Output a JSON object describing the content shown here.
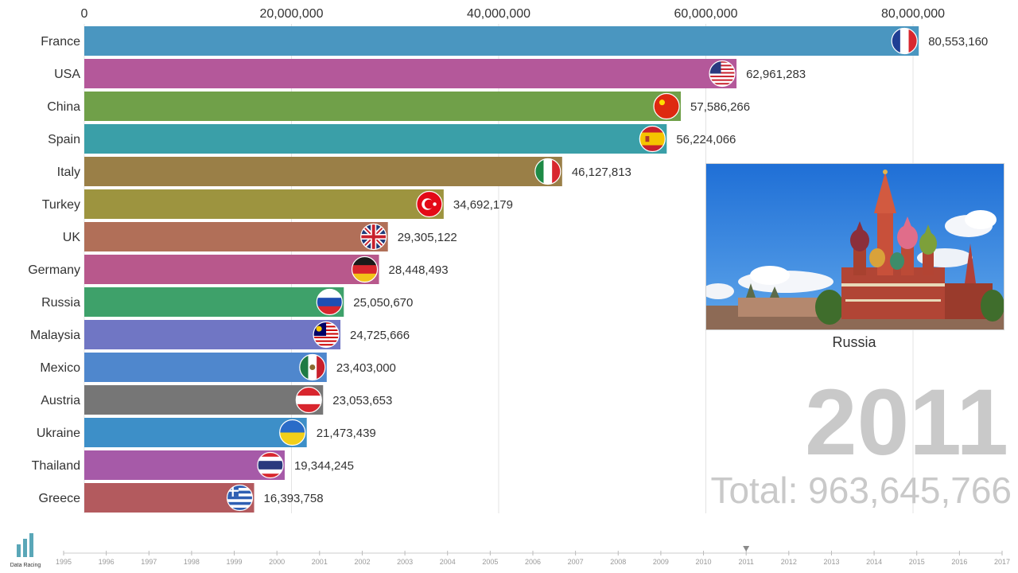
{
  "chart_data": {
    "type": "bar",
    "orientation": "horizontal",
    "title": "",
    "xlabel": "",
    "ylabel": "",
    "xlim": [
      0,
      88000000
    ],
    "x_ticks": [
      0,
      20000000,
      40000000,
      60000000,
      80000000
    ],
    "x_tick_labels": [
      "0",
      "20,000,000",
      "40,000,000",
      "60,000,000",
      "80,000,000"
    ],
    "grid": true,
    "categories": [
      "France",
      "USA",
      "China",
      "Spain",
      "Italy",
      "Turkey",
      "UK",
      "Germany",
      "Russia",
      "Malaysia",
      "Mexico",
      "Austria",
      "Ukraine",
      "Thailand",
      "Greece"
    ],
    "values": [
      80553160,
      62961283,
      57586266,
      56224066,
      46127813,
      34692179,
      29305122,
      28448493,
      25050670,
      24725666,
      23403000,
      23053653,
      21473439,
      19344245,
      16393758
    ],
    "value_labels": [
      "80,553,160",
      "62,961,283",
      "57,586,266",
      "56,224,066",
      "46,127,813",
      "34,692,179",
      "29,305,122",
      "28,448,493",
      "25,050,670",
      "24,725,666",
      "23,403,000",
      "23,053,653",
      "21,473,439",
      "19,344,245",
      "16,393,758"
    ],
    "colors": [
      "#4a96c0",
      "#b4589a",
      "#70a049",
      "#3a9fa8",
      "#9a7f47",
      "#9d943f",
      "#b16f58",
      "#b8588c",
      "#3ea16a",
      "#7076c4",
      "#4f87cd",
      "#767676",
      "#3d8fc8",
      "#a65aa8",
      "#b35a5e"
    ],
    "flag_icons": [
      "france-flag-icon",
      "usa-flag-icon",
      "china-flag-icon",
      "spain-flag-icon",
      "italy-flag-icon",
      "turkey-flag-icon",
      "uk-flag-icon",
      "germany-flag-icon",
      "russia-flag-icon",
      "malaysia-flag-icon",
      "mexico-flag-icon",
      "austria-flag-icon",
      "ukraine-flag-icon",
      "thailand-flag-icon",
      "greece-flag-icon"
    ]
  },
  "highlight": {
    "caption": "Russia",
    "image_icon": "saint-basils-cathedral-photo"
  },
  "year": "2011",
  "total_text": "Total: 963,645,766",
  "brand": {
    "text": "Data Racing",
    "icon": "bar-chart-logo-icon",
    "color": "#5aa7b8"
  },
  "timeline": {
    "years": [
      "1995",
      "1996",
      "1997",
      "1998",
      "1999",
      "2000",
      "2001",
      "2002",
      "2003",
      "2004",
      "2005",
      "2006",
      "2007",
      "2008",
      "2009",
      "2010",
      "2011",
      "2012",
      "2013",
      "2014",
      "2015",
      "2016",
      "2017"
    ],
    "current": "2011",
    "marker_icon": "triangle-down-icon"
  }
}
